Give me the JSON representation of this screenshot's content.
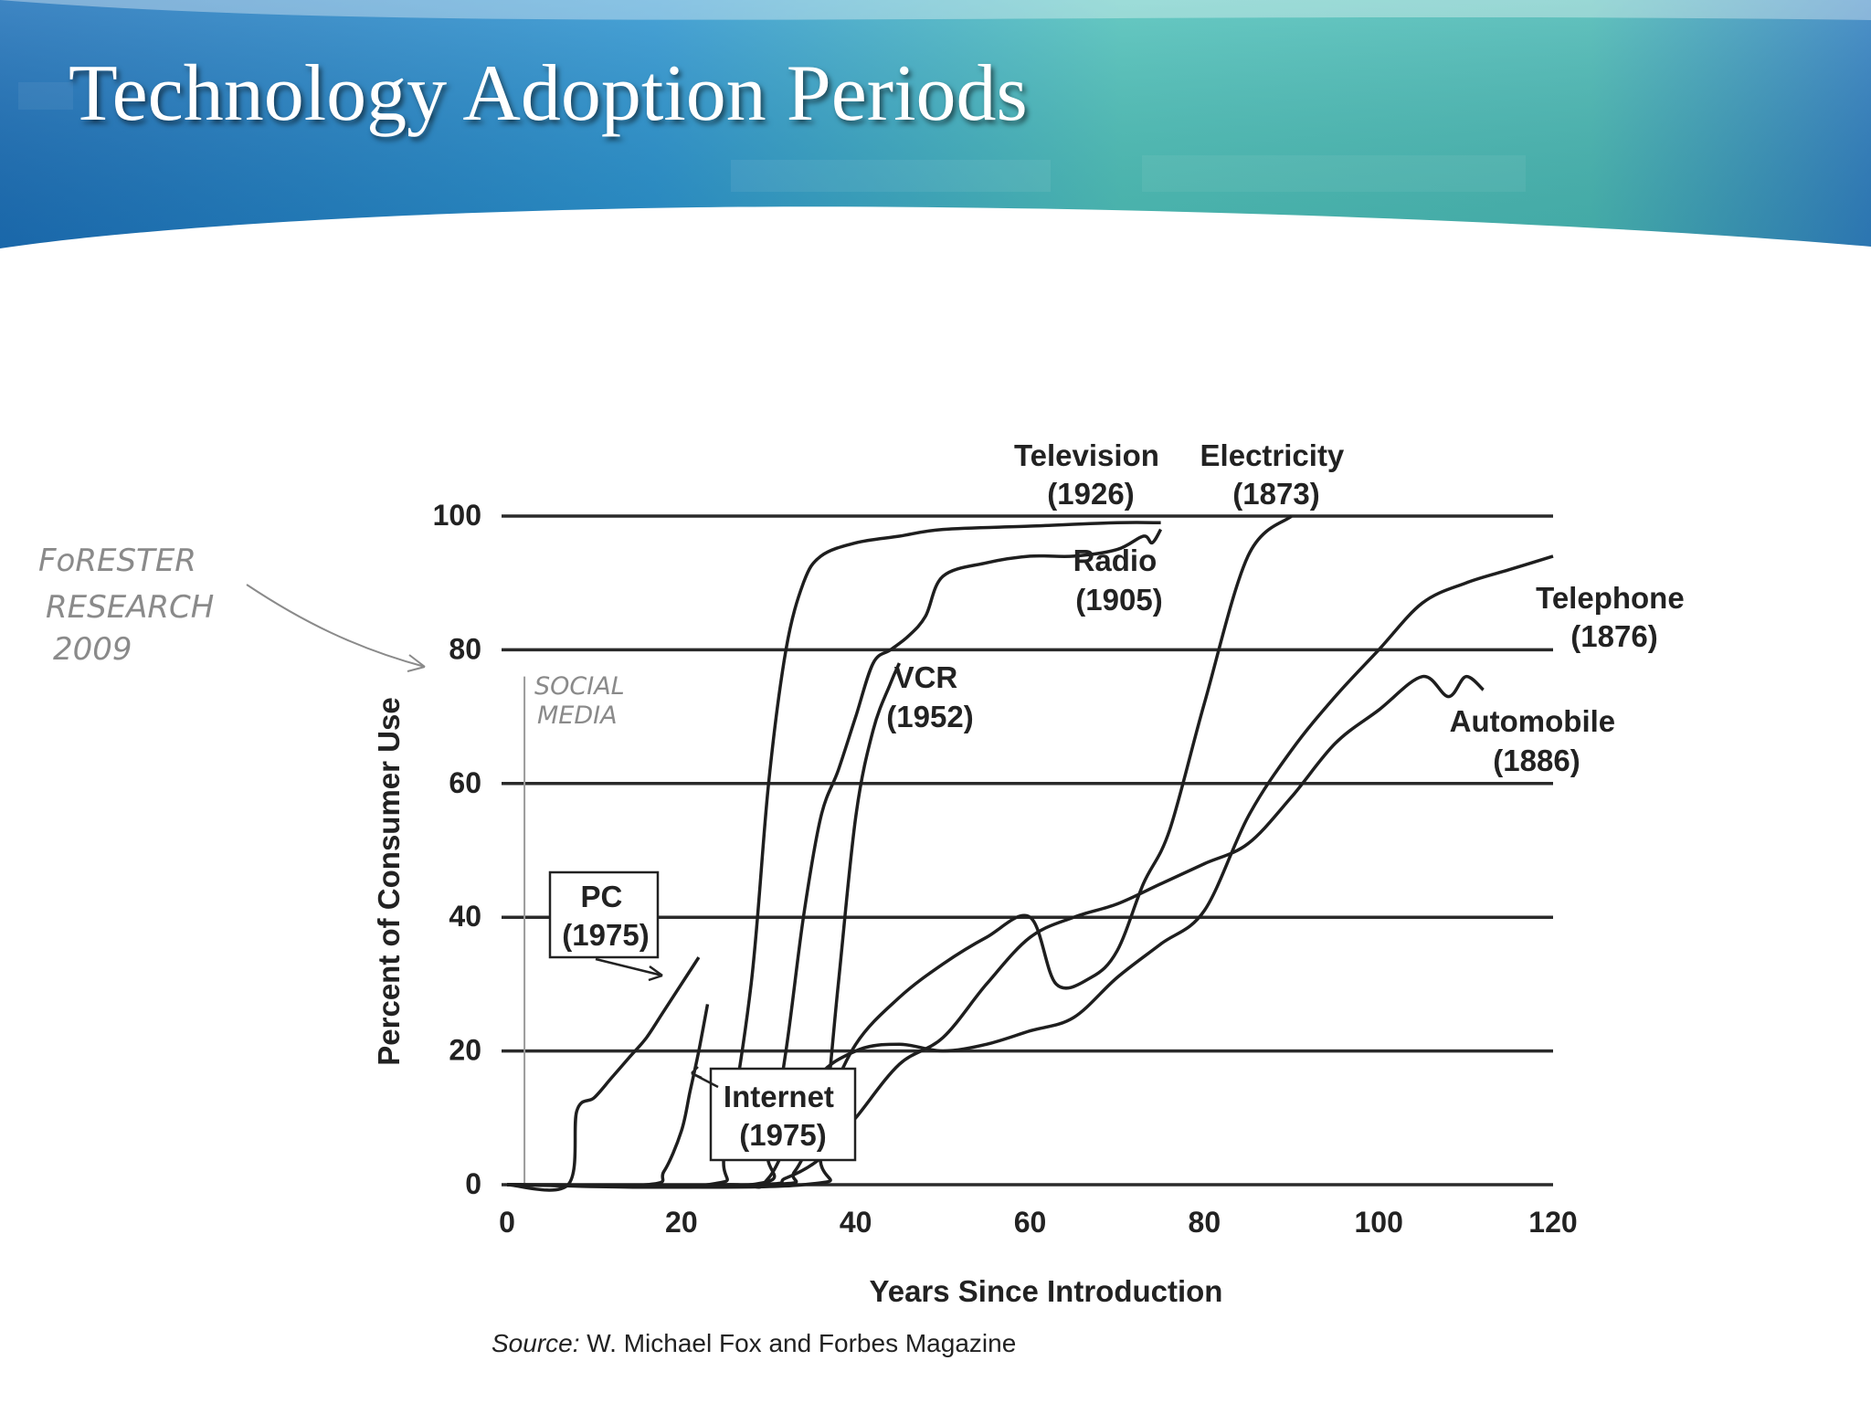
{
  "slide": {
    "title": "Technology Adoption Periods"
  },
  "chart_data": {
    "type": "line",
    "title": "",
    "xlabel": "Years Since Introduction",
    "ylabel": "Percent of Consumer Use",
    "xlim": [
      0,
      120
    ],
    "ylim": [
      0,
      100
    ],
    "x_ticks": [
      "0",
      "20",
      "40",
      "60",
      "80",
      "100",
      "120"
    ],
    "y_ticks": [
      "0",
      "20",
      "40",
      "60",
      "80",
      "100"
    ],
    "grid": "horizontal",
    "legend": "none",
    "series": [
      {
        "name": "Electricity",
        "label_lines": [
          "Electricity",
          "(1873)"
        ],
        "x": [
          0,
          30,
          33,
          36,
          40,
          45,
          50,
          55,
          60,
          63,
          67,
          70,
          73,
          76,
          80,
          85,
          90
        ],
        "y": [
          0,
          0,
          2,
          10,
          21,
          28,
          33,
          37,
          40,
          30,
          31,
          35,
          45,
          53,
          72,
          94,
          100
        ]
      },
      {
        "name": "Television",
        "label_lines": [
          "Television",
          "(1926)"
        ],
        "x": [
          0,
          23,
          25,
          28,
          30,
          32,
          34,
          36,
          40,
          45,
          50,
          60,
          70,
          75
        ],
        "y": [
          0,
          0,
          5,
          30,
          60,
          80,
          90,
          94,
          96,
          97,
          98,
          98.5,
          99,
          99
        ]
      },
      {
        "name": "Radio",
        "label_lines": [
          "Radio",
          "(1905)"
        ],
        "x": [
          0,
          28,
          30,
          32,
          34,
          36,
          38,
          40,
          42,
          44,
          46,
          48,
          50,
          55,
          60,
          65,
          70,
          73,
          74,
          75
        ],
        "y": [
          0,
          0,
          5,
          20,
          40,
          55,
          62,
          70,
          78,
          80,
          82,
          85,
          91,
          93,
          94,
          94,
          95,
          97,
          96,
          98
        ]
      },
      {
        "name": "VCR",
        "label_lines": [
          "VCR",
          "(1952)"
        ],
        "x": [
          0,
          34,
          36,
          38,
          40,
          42,
          44,
          45
        ],
        "y": [
          0,
          0,
          5,
          30,
          55,
          68,
          75,
          78
        ]
      },
      {
        "name": "Telephone",
        "label_lines": [
          "Telephone",
          "(1876)"
        ],
        "x": [
          0,
          25,
          30,
          35,
          40,
          45,
          50,
          55,
          60,
          65,
          70,
          75,
          80,
          85,
          90,
          95,
          100,
          105,
          110,
          115,
          120
        ],
        "y": [
          0,
          0,
          1,
          15,
          20,
          21,
          20,
          21,
          23,
          25,
          31,
          36,
          41,
          55,
          65,
          73,
          80,
          87,
          90,
          92,
          94
        ]
      },
      {
        "name": "Automobile",
        "label_lines": [
          "Automobile",
          "(1886)"
        ],
        "x": [
          0,
          28,
          32,
          36,
          40,
          45,
          50,
          55,
          60,
          65,
          70,
          75,
          80,
          85,
          90,
          95,
          100,
          105,
          108,
          110,
          112
        ],
        "y": [
          0,
          0,
          1,
          4,
          10,
          18,
          22,
          30,
          37,
          40,
          42,
          45,
          48,
          51,
          58,
          66,
          71,
          76,
          73,
          76,
          74
        ]
      },
      {
        "name": "PC",
        "label_lines": [
          "PC",
          "(1975)"
        ],
        "x": [
          0,
          7,
          8,
          10,
          12,
          14,
          16,
          18,
          20,
          22
        ],
        "y": [
          0,
          0,
          11,
          13,
          16,
          19,
          22,
          26,
          30,
          34
        ]
      },
      {
        "name": "Internet",
        "label_lines": [
          "Internet",
          "(1975)"
        ],
        "x": [
          0,
          16,
          18,
          20,
          21,
          22,
          23
        ],
        "y": [
          0,
          0,
          2,
          8,
          14,
          20,
          27
        ]
      }
    ],
    "annotations": {
      "source_prefix": "Source:",
      "source_rest": " W. Michael Fox and Forbes Magazine",
      "handwritten_note": [
        "FoRESTER",
        "RESEARCH",
        "2009"
      ],
      "handwritten_label": [
        "SOCIAL",
        "MEDIA"
      ]
    }
  }
}
